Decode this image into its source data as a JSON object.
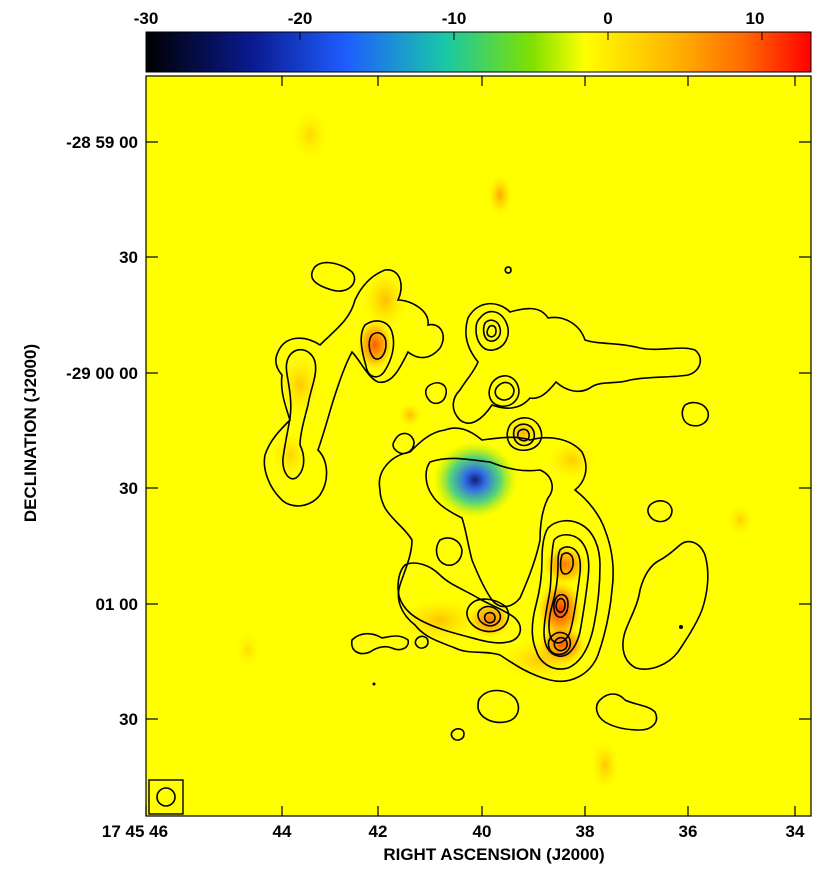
{
  "colorbar": {
    "labels": [
      "-30",
      "-20",
      "-10",
      "0",
      "10"
    ],
    "colors": [
      "#000000",
      "#0a1a90",
      "#1e5cff",
      "#19c8a8",
      "#7ee000",
      "#ffff00",
      "#ffb000",
      "#ff6a00",
      "#ff0000"
    ]
  },
  "axes": {
    "x_title": "RIGHT ASCENSION (J2000)",
    "y_title": "DECLINATION (J2000)",
    "x_ticks": [
      "17 45 46",
      "44",
      "42",
      "40",
      "38",
      "36",
      "34"
    ],
    "y_ticks": [
      "-28 59 00",
      "30",
      "-29 00 00",
      "30",
      "01 00",
      "30"
    ]
  },
  "map": {
    "background": "#ffff00",
    "beam_symbol": "circle"
  }
}
